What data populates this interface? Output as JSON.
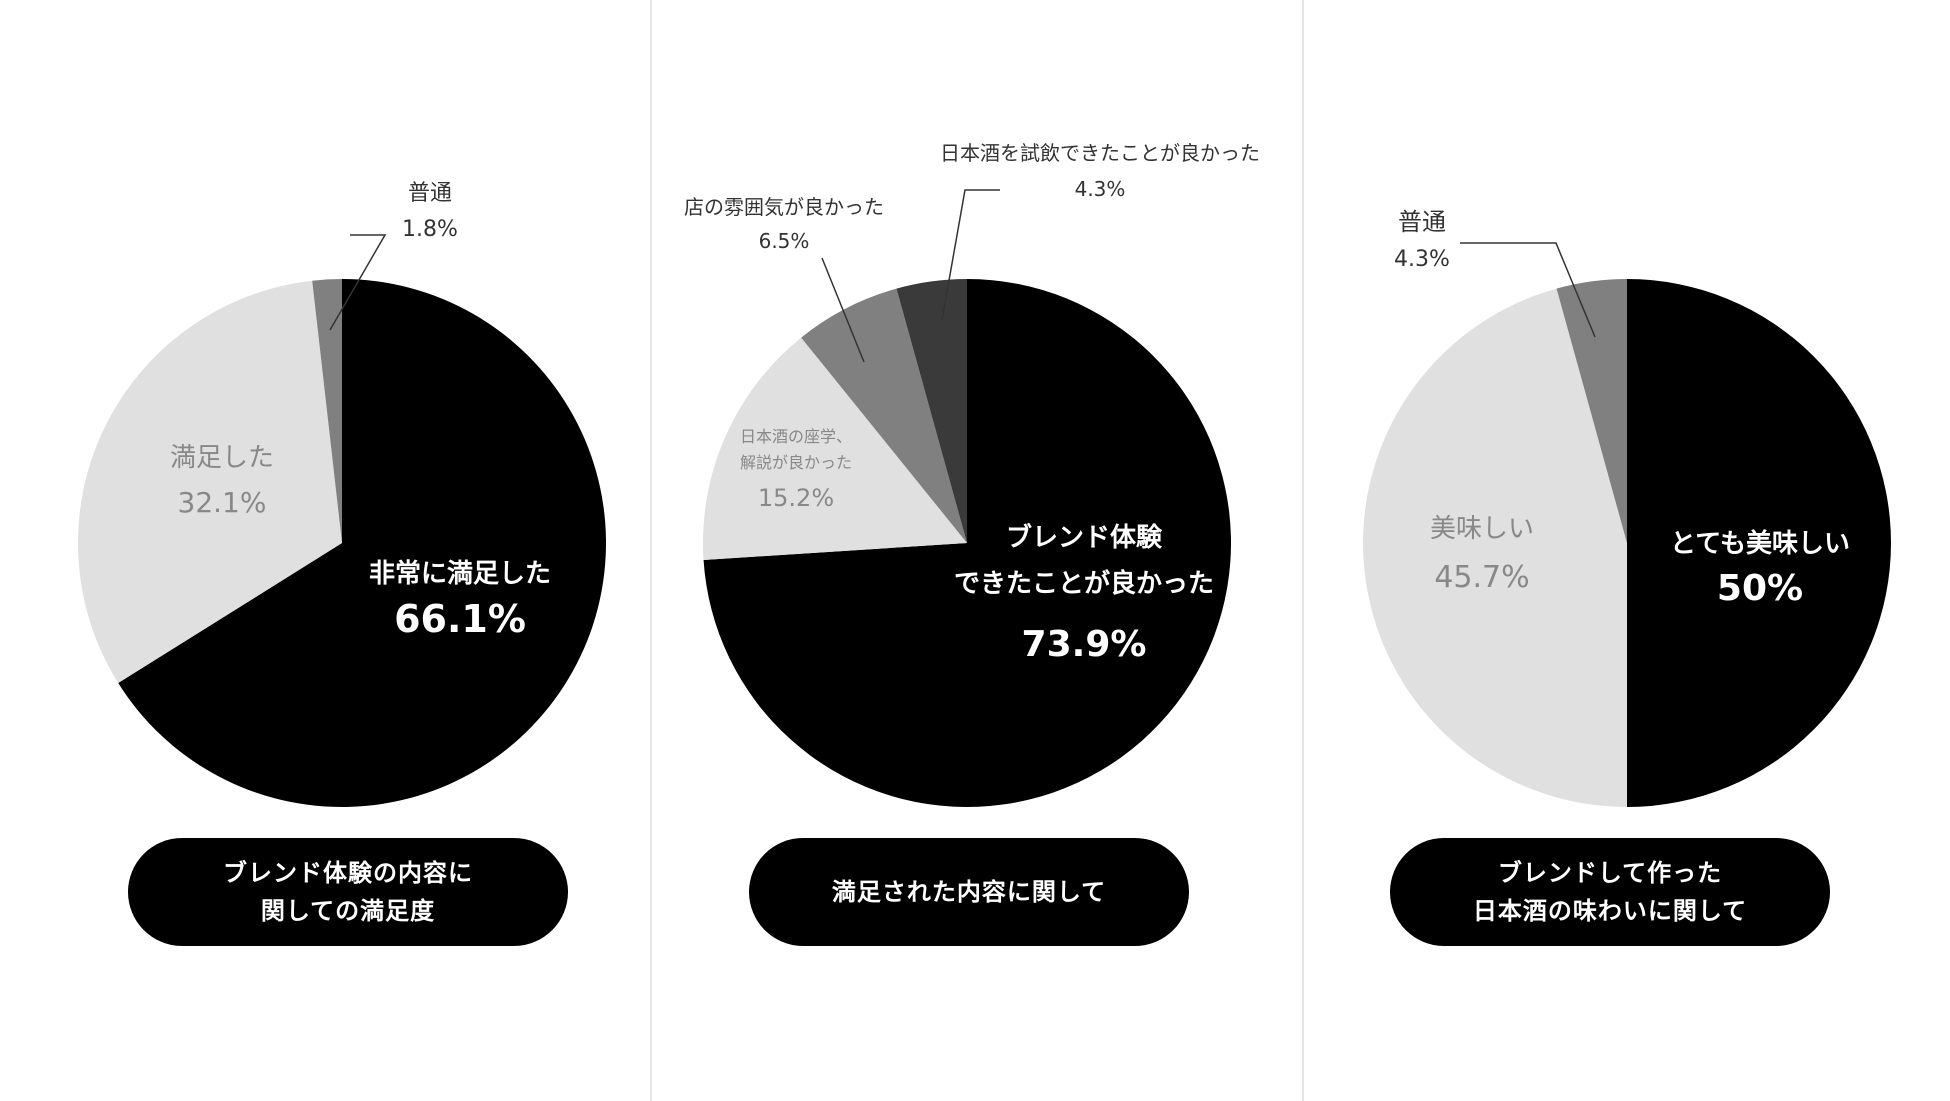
{
  "colors": {
    "black": "#000000",
    "dark": "#3a3a3a",
    "mid": "#808080",
    "light": "#e0e0e0",
    "white": "#ffffff",
    "pale_text": "#888888",
    "leader": "#333333"
  },
  "chart_data": [
    {
      "type": "pie",
      "caption": [
        "ブレンド体験の内容に",
        "関しての満足度"
      ],
      "slices": [
        {
          "label": "非常に満足した",
          "value": 66.1,
          "value_text": "66.1%",
          "color": "#000000",
          "text_color": "#ffffff"
        },
        {
          "label": "満足した",
          "value": 32.1,
          "value_text": "32.1%",
          "color": "#e0e0e0",
          "text_color": "#888888"
        },
        {
          "label": "普通",
          "value": 1.8,
          "value_text": "1.8%",
          "color": "#808080",
          "text_color": "#333333"
        }
      ]
    },
    {
      "type": "pie",
      "caption": [
        "満足された内容に関して"
      ],
      "slices": [
        {
          "label": "ブレンド体験できたことが良かった",
          "value": 73.9,
          "value_text": "73.9%",
          "color": "#000000",
          "text_color": "#ffffff"
        },
        {
          "label": "日本酒の座学、解説が良かった",
          "value": 15.2,
          "value_text": "15.2%",
          "color": "#e0e0e0",
          "text_color": "#888888"
        },
        {
          "label": "店の雰囲気が良かった",
          "value": 6.5,
          "value_text": "6.5%",
          "color": "#808080",
          "text_color": "#333333"
        },
        {
          "label": "日本酒を試飲できたことが良かった",
          "value": 4.3,
          "value_text": "4.3%",
          "color": "#3a3a3a",
          "text_color": "#333333"
        }
      ]
    },
    {
      "type": "pie",
      "caption": [
        "ブレンドして作った",
        "日本酒の味わいに関して"
      ],
      "slices": [
        {
          "label": "とても美味しい",
          "value": 50,
          "value_text": "50%",
          "color": "#000000",
          "text_color": "#ffffff"
        },
        {
          "label": "美味しい",
          "value": 45.7,
          "value_text": "45.7%",
          "color": "#e0e0e0",
          "text_color": "#888888"
        },
        {
          "label": "普通",
          "value": 4.3,
          "value_text": "4.3%",
          "color": "#808080",
          "text_color": "#333333"
        }
      ]
    }
  ]
}
